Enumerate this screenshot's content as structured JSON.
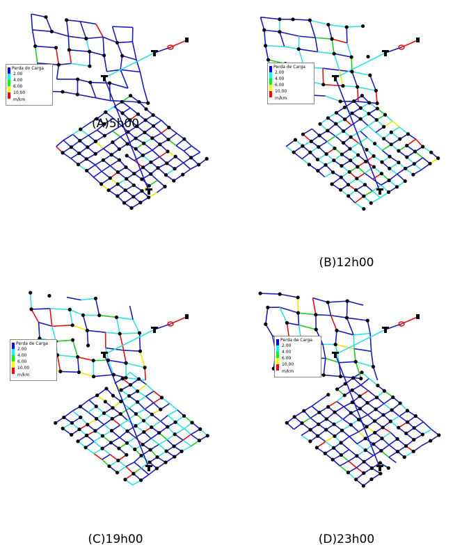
{
  "panels": [
    {
      "caption": "(A)5h00",
      "legend": {
        "title": "Perda do Carga",
        "labels": [
          "2.00",
          "4.00",
          "6.00",
          "10.00"
        ],
        "unit": "m/km",
        "colors": [
          "#0000ff",
          "#00ffff",
          "#00ff00",
          "#ffff00",
          "#ff0000"
        ]
      }
    },
    {
      "caption": "(B)12h00",
      "legend": {
        "title": "Perda de Carga",
        "labels": [
          "2.00",
          "4.00",
          "6.00",
          "10.00"
        ],
        "unit": "m/km",
        "colors": [
          "#0000ff",
          "#00ffff",
          "#00ff00",
          "#ffff00",
          "#ff0000"
        ]
      }
    },
    {
      "caption": "(C)19h00",
      "legend": {
        "title": "Perda de Carga",
        "labels": [
          "2.00",
          "4.00",
          "6.00",
          "10.00"
        ],
        "unit": "m/km",
        "colors": [
          "#0000ff",
          "#00ffff",
          "#00ff00",
          "#ffff00",
          "#ff0000"
        ]
      }
    },
    {
      "caption": "(D)23h00",
      "legend": {
        "title": "Perda de Carga",
        "labels": [
          "2.00",
          "4.00",
          "6.00",
          "10.00"
        ],
        "unit": "m/km",
        "colors": [
          "#0000ff",
          "#00ffff",
          "#00ff00",
          "#ffff00",
          "#ff0000"
        ]
      }
    }
  ]
}
